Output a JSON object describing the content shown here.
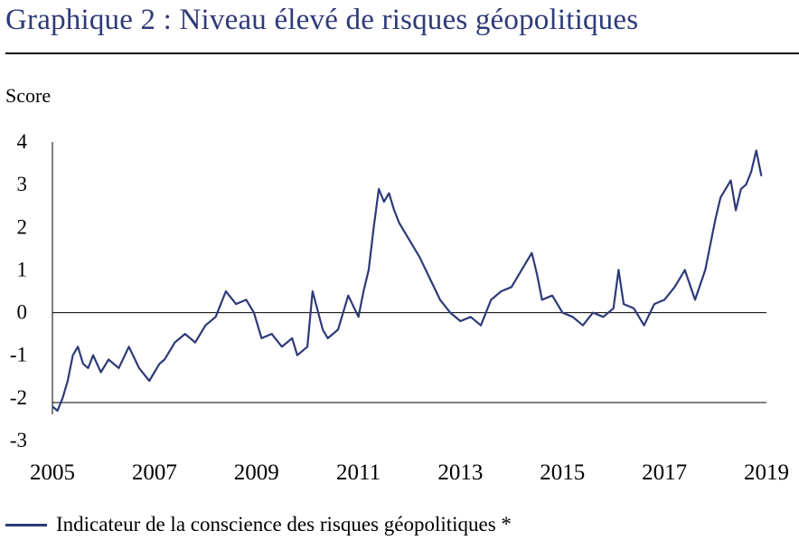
{
  "page": {
    "title": "Graphique 2 : Niveau  élevé  de  risques géopolitiques"
  },
  "chart_data": {
    "type": "line",
    "title": "Graphique 2 : Niveau  élevé  de  risques géopolitiques",
    "ylabel": "Score",
    "xlabel": "",
    "xlim": [
      2005,
      2019
    ],
    "ylim": [
      -3,
      4
    ],
    "x_ticks": [
      "2005",
      "2007",
      "2009",
      "2011",
      "2013",
      "2015",
      "2017",
      "2019"
    ],
    "y_ticks": [
      "4",
      "3",
      "2",
      "1",
      "0",
      "-1",
      "-2",
      "-3"
    ],
    "grid": false,
    "legend_position": "bottom-left",
    "colors": {
      "series": "#2e3a78",
      "axes": "#000000"
    },
    "series": [
      {
        "name": "Indicateur de la conscience  des risques géopolitiques  *",
        "x": [
          2005.0,
          2005.1,
          2005.2,
          2005.3,
          2005.4,
          2005.5,
          2005.6,
          2005.7,
          2005.8,
          2005.95,
          2006.1,
          2006.3,
          2006.5,
          2006.7,
          2006.9,
          2007.1,
          2007.2,
          2007.4,
          2007.6,
          2007.8,
          2008.0,
          2008.2,
          2008.4,
          2008.6,
          2008.8,
          2008.95,
          2009.1,
          2009.3,
          2009.5,
          2009.7,
          2009.8,
          2010.0,
          2010.1,
          2010.3,
          2010.4,
          2010.6,
          2010.8,
          2011.0,
          2011.1,
          2011.2,
          2011.3,
          2011.4,
          2011.5,
          2011.6,
          2011.7,
          2011.8,
          2012.0,
          2012.2,
          2012.4,
          2012.6,
          2012.8,
          2013.0,
          2013.2,
          2013.4,
          2013.6,
          2013.8,
          2014.0,
          2014.2,
          2014.4,
          2014.5,
          2014.6,
          2014.8,
          2015.0,
          2015.2,
          2015.4,
          2015.6,
          2015.8,
          2016.0,
          2016.1,
          2016.2,
          2016.4,
          2016.6,
          2016.8,
          2017.0,
          2017.2,
          2017.3,
          2017.4,
          2017.6,
          2017.8,
          2018.0,
          2018.1,
          2018.3,
          2018.4,
          2018.5,
          2018.6,
          2018.7,
          2018.8,
          2018.9
        ],
        "values": [
          -2.2,
          -2.3,
          -2.0,
          -1.6,
          -1.0,
          -0.8,
          -1.2,
          -1.3,
          -1.0,
          -1.4,
          -1.1,
          -1.3,
          -0.8,
          -1.3,
          -1.6,
          -1.2,
          -1.1,
          -0.7,
          -0.5,
          -0.7,
          -0.3,
          -0.1,
          0.5,
          0.2,
          0.3,
          0.0,
          -0.6,
          -0.5,
          -0.8,
          -0.6,
          -1.0,
          -0.8,
          0.5,
          -0.4,
          -0.6,
          -0.4,
          0.4,
          -0.1,
          0.5,
          1.0,
          2.0,
          2.9,
          2.6,
          2.8,
          2.4,
          2.1,
          1.7,
          1.3,
          0.8,
          0.3,
          0.0,
          -0.2,
          -0.1,
          -0.3,
          0.3,
          0.5,
          0.6,
          1.0,
          1.4,
          0.9,
          0.3,
          0.4,
          0.0,
          -0.1,
          -0.3,
          0.0,
          -0.1,
          0.1,
          1.0,
          0.2,
          0.1,
          -0.3,
          0.2,
          0.3,
          0.6,
          0.8,
          1.0,
          0.3,
          1.0,
          2.2,
          2.7,
          3.1,
          2.4,
          2.9,
          3.0,
          3.3,
          3.8,
          3.2
        ]
      }
    ]
  }
}
